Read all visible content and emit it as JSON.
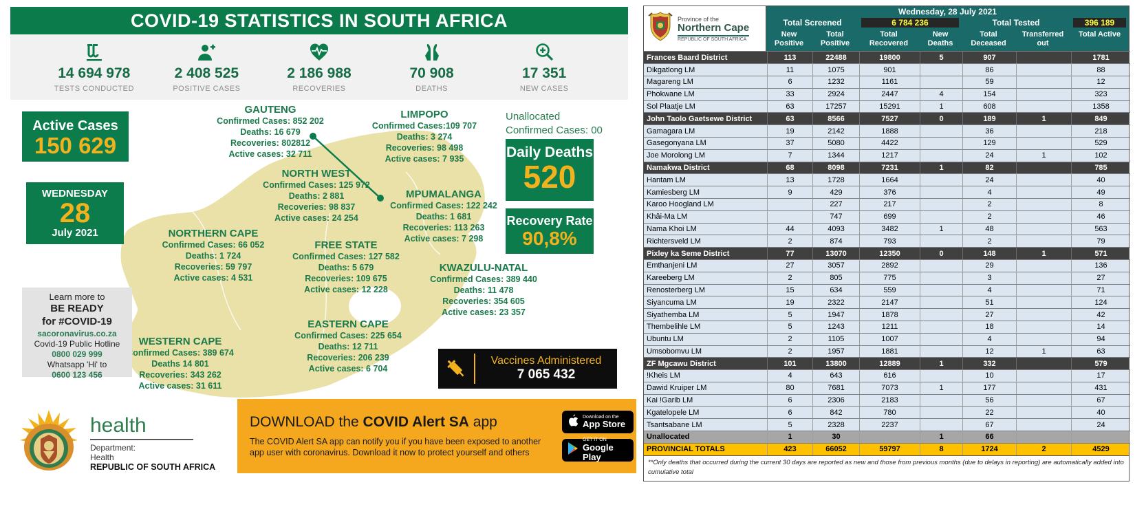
{
  "left_panel": {
    "title": "COVID-19 STATISTICS IN SOUTH AFRICA",
    "stats": [
      {
        "icon": "test-tubes-icon",
        "value": "14 694 978",
        "label": "TESTS CONDUCTED"
      },
      {
        "icon": "person-plus-icon",
        "value": "2 408 525",
        "label": "POSITIVE CASES"
      },
      {
        "icon": "heart-pulse-icon",
        "value": "2 186 988",
        "label": "RECOVERIES"
      },
      {
        "icon": "praying-hands-icon",
        "value": "70 908",
        "label": "DEATHS"
      },
      {
        "icon": "magnifier-plus-icon",
        "value": "17 351",
        "label": "NEW CASES"
      }
    ],
    "active_cases": {
      "label": "Active Cases",
      "value": "150 629"
    },
    "date_box": {
      "day_name": "WEDNESDAY",
      "day": "28",
      "month_year": "July 2021"
    },
    "learn_more": {
      "line1": "Learn more to",
      "line2": "BE READY",
      "line3": "for #COVID-19",
      "website": "sacoronavirus.co.za",
      "hotline_label": "Covid-19 Public Hotline",
      "hotline_number": "0800 029 999",
      "whatsapp_label": "Whatsapp 'Hi' to",
      "whatsapp_number": "0600 123 456"
    },
    "unallocated": {
      "line1": "Unallocated",
      "line2": "Confirmed Cases: 00"
    },
    "daily_deaths": {
      "label": "Daily Deaths",
      "value": "520"
    },
    "recovery_rate": {
      "label": "Recovery Rate",
      "value": "90,8%"
    },
    "provinces": [
      {
        "name": "GAUTENG",
        "lines": [
          "Confirmed Cases: 852 202",
          "Deaths: 16 679",
          "Recoveries: 802812",
          "Active cases: 32 711"
        ]
      },
      {
        "name": "LIMPOPO",
        "lines": [
          "Confirmed Cases:109 707",
          "Deaths: 3 274",
          "Recoveries: 98 498",
          "Active cases: 7 935"
        ]
      },
      {
        "name": "NORTH WEST",
        "lines": [
          "Confirmed Cases: 125 972",
          "Deaths: 2 881",
          "Recoveries: 98 837",
          "Active cases: 24 254"
        ]
      },
      {
        "name": "MPUMALANGA",
        "lines": [
          "Confirmed Cases: 122 242",
          "Deaths: 1 681",
          "Recoveries: 113 263",
          "Active cases: 7 298"
        ]
      },
      {
        "name": "NORTHERN CAPE",
        "lines": [
          "Confirmed Cases: 66 052",
          "Deaths: 1 724",
          "Recoveries: 59 797",
          "Active cases: 4 531"
        ]
      },
      {
        "name": "FREE STATE",
        "lines": [
          "Confirmed Cases: 127 582",
          "Deaths: 5 679",
          "Recoveries: 109 675",
          "Active cases: 12 228"
        ]
      },
      {
        "name": "KWAZULU-NATAL",
        "lines": [
          "Confirmed Cases: 389 440",
          "Deaths: 11 478",
          "Recoveries: 354 605",
          "Active cases: 23 357"
        ]
      },
      {
        "name": "EASTERN CAPE",
        "lines": [
          "Confirmed Cases: 225 654",
          "Deaths: 12 711",
          "Recoveries: 206 239",
          "Active cases: 6 704"
        ]
      },
      {
        "name": "WESTERN CAPE",
        "lines": [
          "Confirmed Cases: 389 674",
          "Deaths 14 801",
          "Recoveries: 343 262",
          "Active cases: 31 611"
        ]
      }
    ],
    "vaccines": {
      "label": "Vaccines Administered",
      "value": "7 065 432"
    },
    "department": {
      "brand": "health",
      "line1": "Department:",
      "line2": "Health",
      "line3": "REPUBLIC OF SOUTH AFRICA"
    },
    "app_banner": {
      "title_prefix": "DOWNLOAD the ",
      "title_bold": "COVID Alert SA",
      "title_suffix": " app",
      "description": "The COVID Alert SA app can notify you if you have been exposed to another app user with coronavirus. Download it now to protect yourself and others",
      "appstore_small": "Download on the",
      "appstore_big": "App Store",
      "googleplay_small": "GET IT ON",
      "googleplay_big": "Google Play"
    },
    "colors": {
      "green": "#0c7c4d",
      "yellow": "#f2b21e",
      "map_tan": "#e9e1a8",
      "banner_orange": "#f5a81d"
    }
  },
  "table": {
    "logo": {
      "line1": "Province of the",
      "line2": "Northern Cape",
      "line3": "REPUBLIC OF SOUTH AFRICA"
    },
    "date": "Wednesday, 28 July 2021",
    "total_screened_label": "Total Screened",
    "total_screened_value": "6 784 236",
    "total_tested_label": "Total Tested",
    "total_tested_value": "396 189",
    "columns": [
      "New Positive",
      "Total Positive",
      "Total Recovered",
      "New Deaths",
      "Total Deceased",
      "Transferred out",
      "Total Active"
    ],
    "rows": [
      {
        "name": "Frances Baard District",
        "type": "district",
        "values": [
          "113",
          "22488",
          "19800",
          "5",
          "907",
          "",
          "1781"
        ]
      },
      {
        "name": "Dikgatlong LM",
        "type": "lm",
        "values": [
          "11",
          "1075",
          "901",
          "",
          "86",
          "",
          "88"
        ]
      },
      {
        "name": "Magareng LM",
        "type": "lm",
        "values": [
          "6",
          "1232",
          "1161",
          "",
          "59",
          "",
          "12"
        ]
      },
      {
        "name": "Phokwane LM",
        "type": "lm",
        "values": [
          "33",
          "2924",
          "2447",
          "4",
          "154",
          "",
          "323"
        ]
      },
      {
        "name": "Sol Plaatje LM",
        "type": "lm",
        "values": [
          "63",
          "17257",
          "15291",
          "1",
          "608",
          "",
          "1358"
        ]
      },
      {
        "name": "John Taolo Gaetsewe District",
        "type": "district",
        "values": [
          "63",
          "8566",
          "7527",
          "0",
          "189",
          "1",
          "849"
        ]
      },
      {
        "name": "Gamagara LM",
        "type": "lm",
        "values": [
          "19",
          "2142",
          "1888",
          "",
          "36",
          "",
          "218"
        ]
      },
      {
        "name": "Gasegonyana LM",
        "type": "lm",
        "values": [
          "37",
          "5080",
          "4422",
          "",
          "129",
          "",
          "529"
        ]
      },
      {
        "name": "Joe Morolong LM",
        "type": "lm",
        "values": [
          "7",
          "1344",
          "1217",
          "",
          "24",
          "1",
          "102"
        ]
      },
      {
        "name": "Namakwa District",
        "type": "district",
        "values": [
          "68",
          "8098",
          "7231",
          "1",
          "82",
          "",
          "785"
        ]
      },
      {
        "name": "Hantam LM",
        "type": "lm",
        "values": [
          "13",
          "1728",
          "1664",
          "",
          "24",
          "",
          "40"
        ]
      },
      {
        "name": "Kamiesberg LM",
        "type": "lm",
        "values": [
          "9",
          "429",
          "376",
          "",
          "4",
          "",
          "49"
        ]
      },
      {
        "name": "Karoo Hoogland LM",
        "type": "lm",
        "values": [
          "",
          "227",
          "217",
          "",
          "2",
          "",
          "8"
        ]
      },
      {
        "name": "Khâi-Ma LM",
        "type": "lm",
        "values": [
          "",
          "747",
          "699",
          "",
          "2",
          "",
          "46"
        ]
      },
      {
        "name": "Nama Khoi LM",
        "type": "lm",
        "values": [
          "44",
          "4093",
          "3482",
          "1",
          "48",
          "",
          "563"
        ]
      },
      {
        "name": "Richtersveld LM",
        "type": "lm",
        "values": [
          "2",
          "874",
          "793",
          "",
          "2",
          "",
          "79"
        ]
      },
      {
        "name": "Pixley ka Seme District",
        "type": "district",
        "values": [
          "77",
          "13070",
          "12350",
          "0",
          "148",
          "1",
          "571"
        ]
      },
      {
        "name": "Emthanjeni LM",
        "type": "lm",
        "values": [
          "27",
          "3057",
          "2892",
          "",
          "29",
          "",
          "136"
        ]
      },
      {
        "name": "Kareeberg LM",
        "type": "lm",
        "values": [
          "2",
          "805",
          "775",
          "",
          "3",
          "",
          "27"
        ]
      },
      {
        "name": "Renosterberg LM",
        "type": "lm",
        "values": [
          "15",
          "634",
          "559",
          "",
          "4",
          "",
          "71"
        ]
      },
      {
        "name": "Siyancuma LM",
        "type": "lm",
        "values": [
          "19",
          "2322",
          "2147",
          "",
          "51",
          "",
          "124"
        ]
      },
      {
        "name": "Siyathemba LM",
        "type": "lm",
        "values": [
          "5",
          "1947",
          "1878",
          "",
          "27",
          "",
          "42"
        ]
      },
      {
        "name": "Thembelihle LM",
        "type": "lm",
        "values": [
          "5",
          "1243",
          "1211",
          "",
          "18",
          "",
          "14"
        ]
      },
      {
        "name": "Ubuntu LM",
        "type": "lm",
        "values": [
          "2",
          "1105",
          "1007",
          "",
          "4",
          "",
          "94"
        ]
      },
      {
        "name": "Umsobomvu LM",
        "type": "lm",
        "values": [
          "2",
          "1957",
          "1881",
          "",
          "12",
          "1",
          "63"
        ]
      },
      {
        "name": "ZF Mgcawu District",
        "type": "district",
        "values": [
          "101",
          "13800",
          "12889",
          "1",
          "332",
          "",
          "579"
        ]
      },
      {
        "name": "!Kheis LM",
        "type": "lm",
        "values": [
          "4",
          "643",
          "616",
          "",
          "10",
          "",
          "17"
        ]
      },
      {
        "name": "Dawid Kruiper LM",
        "type": "lm",
        "values": [
          "80",
          "7681",
          "7073",
          "1",
          "177",
          "",
          "431"
        ]
      },
      {
        "name": "Kai !Garib LM",
        "type": "lm",
        "values": [
          "6",
          "2306",
          "2183",
          "",
          "56",
          "",
          "67"
        ]
      },
      {
        "name": "Kgatelopele LM",
        "type": "lm",
        "values": [
          "6",
          "842",
          "780",
          "",
          "22",
          "",
          "40"
        ]
      },
      {
        "name": "Tsantsabane LM",
        "type": "lm",
        "values": [
          "5",
          "2328",
          "2237",
          "",
          "67",
          "",
          "24"
        ]
      },
      {
        "name": "Unallocated",
        "type": "unallocated",
        "values": [
          "1",
          "30",
          "",
          "1",
          "66",
          "",
          ""
        ]
      },
      {
        "name": "PROVINCIAL TOTALS",
        "type": "totals",
        "values": [
          "423",
          "66052",
          "59797",
          "8",
          "1724",
          "2",
          "4529"
        ]
      }
    ],
    "footnote": "**Only deaths that occurred during the current 30 days are reported as new and those from previous months (due to delays in reporting) are automatically added into cumulative total"
  }
}
